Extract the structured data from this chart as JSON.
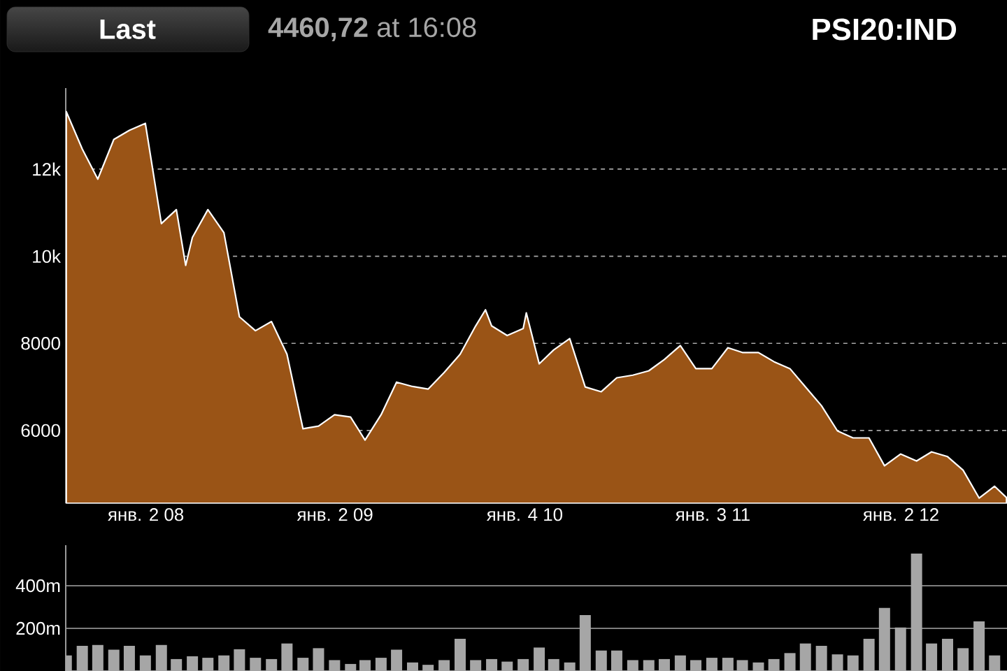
{
  "chart_data": [
    {
      "type": "area",
      "title": "PSI20:IND",
      "subtitle": "**4460,72** at 16:08",
      "annotations": [
        "Last"
      ],
      "x": [
        "2007-08-01",
        "2007-09-01",
        "2007-10-01",
        "2007-11-01",
        "2007-12-01",
        "2008-01-01",
        "2008-02-01",
        "2008-03-01",
        "2008-03-19",
        "2008-04-01",
        "2008-05-01",
        "2008-06-01",
        "2008-07-01",
        "2008-08-01",
        "2008-09-01",
        "2008-10-01",
        "2008-11-01",
        "2008-12-01",
        "2009-01-01",
        "2009-02-01",
        "2009-03-01",
        "2009-04-01",
        "2009-05-01",
        "2009-06-01",
        "2009-07-01",
        "2009-08-01",
        "2009-09-01",
        "2009-10-01",
        "2009-10-20",
        "2009-11-01",
        "2009-12-01",
        "2010-01-01",
        "2010-01-07",
        "2010-02-01",
        "2010-03-01",
        "2010-04-01",
        "2010-05-01",
        "2010-06-01",
        "2010-07-01",
        "2010-08-01",
        "2010-09-01",
        "2010-10-01",
        "2010-11-01",
        "2010-12-01",
        "2011-01-01",
        "2011-02-01",
        "2011-03-01",
        "2011-04-01",
        "2011-05-01",
        "2011-06-01",
        "2011-07-01",
        "2011-08-01",
        "2011-09-01",
        "2011-10-01",
        "2011-11-01",
        "2011-12-01",
        "2012-01-01",
        "2012-02-01",
        "2012-03-01",
        "2012-04-01",
        "2012-05-01",
        "2012-06-01",
        "2012-07-01",
        "2012-07-24"
      ],
      "series": [
        {
          "color": "#9a5416",
          "values": [
            13320,
            12460,
            11770,
            12680,
            12890,
            13050,
            10750,
            11070,
            9790,
            10430,
            11070,
            10540,
            8610,
            8290,
            8500,
            7750,
            6040,
            6100,
            6360,
            6310,
            5780,
            6360,
            7110,
            7010,
            6950,
            7330,
            7750,
            8400,
            8770,
            8400,
            8180,
            8340,
            8700,
            7530,
            7850,
            8110,
            7000,
            6890,
            7210,
            7270,
            7370,
            7630,
            7950,
            7420,
            7420,
            7900,
            7790,
            7790,
            7580,
            7420,
            7000,
            6570,
            5990,
            5830,
            5830,
            5190,
            5460,
            5300,
            5510,
            5400,
            5090,
            4450,
            4720,
            4460
          ]
        }
      ],
      "xlim": [
        "2007-07-31",
        "2012-07-25"
      ],
      "xticks": [
        {
          "value": "2008-01-02",
          "label": "янв. 2 08"
        },
        {
          "value": "2009-01-02",
          "label": "янв. 2 09"
        },
        {
          "value": "2010-01-04",
          "label": "янв. 4 10"
        },
        {
          "value": "2011-01-03",
          "label": "янв. 3 11"
        },
        {
          "value": "2012-01-02",
          "label": "янв. 2 12"
        }
      ],
      "ylim": [
        4330,
        13860
      ],
      "yticks": [
        6000,
        8000,
        {
          "value": 10000,
          "label": "10k"
        },
        {
          "value": 12000,
          "label": "12k"
        }
      ],
      "grid": "y"
    },
    {
      "type": "bar",
      "x": [
        "2007-08-01",
        "2007-09-01",
        "2007-10-01",
        "2007-11-01",
        "2007-12-01",
        "2008-01-01",
        "2008-02-01",
        "2008-03-01",
        "2008-04-01",
        "2008-05-01",
        "2008-06-01",
        "2008-07-01",
        "2008-08-01",
        "2008-09-01",
        "2008-10-01",
        "2008-11-01",
        "2008-12-01",
        "2009-01-01",
        "2009-02-01",
        "2009-03-01",
        "2009-04-01",
        "2009-05-01",
        "2009-06-01",
        "2009-07-01",
        "2009-08-01",
        "2009-09-01",
        "2009-10-01",
        "2009-11-01",
        "2009-12-01",
        "2010-01-01",
        "2010-02-01",
        "2010-03-01",
        "2010-04-01",
        "2010-05-01",
        "2010-06-01",
        "2010-07-01",
        "2010-08-01",
        "2010-09-01",
        "2010-10-01",
        "2010-11-01",
        "2010-12-01",
        "2011-01-01",
        "2011-02-01",
        "2011-03-01",
        "2011-04-01",
        "2011-05-01",
        "2011-06-01",
        "2011-07-01",
        "2011-08-01",
        "2011-09-01",
        "2011-10-01",
        "2011-11-01",
        "2011-12-01",
        "2012-01-01",
        "2012-02-01",
        "2012-03-01",
        "2012-04-01",
        "2012-05-01",
        "2012-06-01",
        "2012-07-01"
      ],
      "series": [
        {
          "color": "#a6a6a6",
          "values": [
            73,
            118,
            122,
            100,
            118,
            73,
            122,
            56,
            69,
            62,
            73,
            102,
            62,
            56,
            129,
            62,
            107,
            51,
            33,
            51,
            62,
            100,
            40,
            29,
            51,
            151,
            51,
            56,
            44,
            56,
            110,
            56,
            40,
            262,
            96,
            96,
            51,
            51,
            56,
            73,
            51,
            62,
            62,
            51,
            40,
            56,
            84,
            129,
            118,
            78,
            73,
            151,
            296,
            204,
            551,
            129,
            151,
            107,
            233,
            73
          ]
        }
      ],
      "xlim": [
        "2007-07-31",
        "2012-07-25"
      ],
      "ylim": [
        0,
        590
      ],
      "yticks": [
        {
          "value": 200,
          "label": "200m"
        },
        {
          "value": 400,
          "label": "400m"
        }
      ],
      "grid": "y",
      "tick_labels": "y"
    }
  ]
}
